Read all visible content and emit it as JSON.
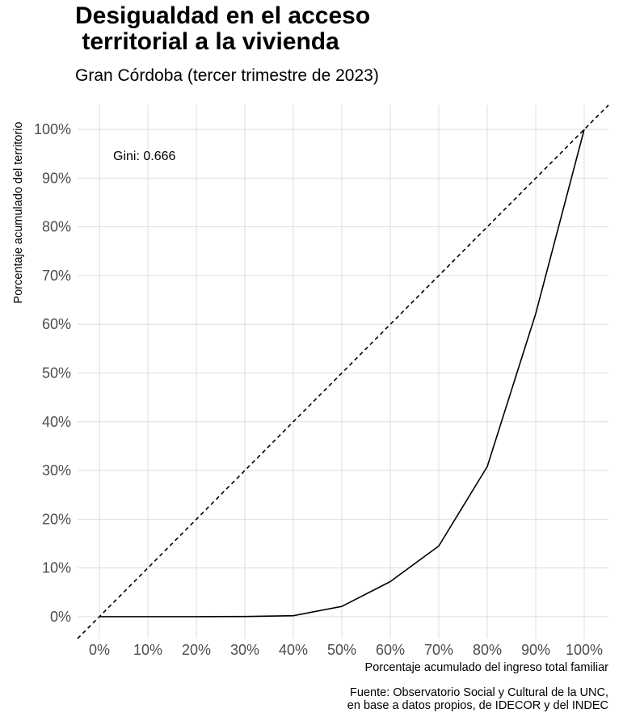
{
  "chart_data": {
    "type": "line",
    "title": "Desigualdad en el acceso\n territorial a la vivienda",
    "subtitle": "Gran Córdoba (tercer trimestre de 2023)",
    "xlabel": "Porcentaje acumulado del ingreso total familiar",
    "ylabel": "Porcentaje acumulado del territorio",
    "caption": "Fuente: Observatorio Social y Cultural de la UNC,\n en base a datos propios, de IDECOR y del INDEC",
    "annotation": "Gini: 0.666",
    "xlim": [
      -0.045,
      1.05
    ],
    "ylim": [
      -0.045,
      1.05
    ],
    "x_ticks": [
      0,
      0.1,
      0.2,
      0.3,
      0.4,
      0.5,
      0.6,
      0.7,
      0.8,
      0.9,
      1.0
    ],
    "x_tick_labels": [
      "0%",
      "10%",
      "20%",
      "30%",
      "40%",
      "50%",
      "60%",
      "70%",
      "80%",
      "90%",
      "100%"
    ],
    "y_ticks": [
      0,
      0.1,
      0.2,
      0.3,
      0.4,
      0.5,
      0.6,
      0.7,
      0.8,
      0.9,
      1.0
    ],
    "y_tick_labels": [
      "0%",
      "10%",
      "20%",
      "30%",
      "40%",
      "50%",
      "60%",
      "70%",
      "80%",
      "90%",
      "100%"
    ],
    "grid": true,
    "series": [
      {
        "x": [
          0,
          0.1,
          0.2,
          0.3,
          0.4,
          0.5,
          0.6,
          0.7,
          0.8,
          0.9,
          1.0
        ],
        "y": [
          0,
          0,
          0,
          0.0003,
          0.002,
          0.021,
          0.072,
          0.145,
          0.308,
          0.622,
          1.0
        ],
        "color": "#000000",
        "linestyle": "solid"
      }
    ],
    "reference_line": {
      "slope": 1,
      "intercept": 0,
      "color": "#000000",
      "linestyle": "dashed"
    },
    "colors": {
      "grid": "#dedede",
      "tick_text": "#4d4d4d",
      "background": "#ffffff"
    }
  }
}
